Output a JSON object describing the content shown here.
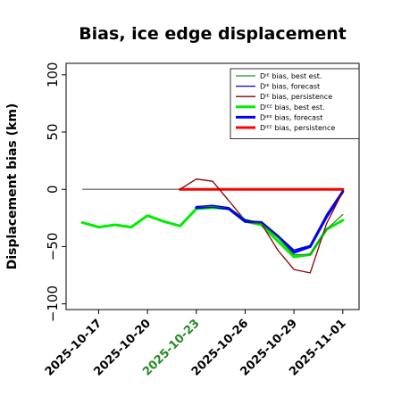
{
  "chart_data": {
    "type": "line",
    "title": "Bias, ice edge displacement",
    "xlabel": "",
    "ylabel": "Displacement bias (km)",
    "ylim": [
      -105,
      110
    ],
    "xlim": [
      "2025-10-15",
      "2025-11-02"
    ],
    "y_ticks": [
      -100,
      -50,
      0,
      50,
      100
    ],
    "y_tick_labels": [
      "−100",
      "−50",
      "0",
      "50",
      "100"
    ],
    "x_ticks": [
      "2025-10-17",
      "2025-10-20",
      "2025-10-23",
      "2025-10-26",
      "2025-10-29",
      "2025-11-01"
    ],
    "x_tick_labels": [
      "2025-10-17",
      "2025-10-20",
      "2025-10-23",
      "2025-10-26",
      "2025-10-29",
      "2025-11-01"
    ],
    "x_tick_colors": [
      "#000000",
      "#000000",
      "#228b22",
      "#000000",
      "#000000",
      "#000000"
    ],
    "grid": false,
    "legend_position": "top-right",
    "zero_line": {
      "from": "2025-10-16",
      "to": "2025-10-22",
      "y": 0,
      "color": "#555555"
    },
    "series": [
      {
        "name": "Dᴵᴱ bias, best est.",
        "color": "#228b22",
        "width": 1.3,
        "x": [
          "2025-10-23",
          "2025-10-24",
          "2025-10-25",
          "2025-10-26",
          "2025-10-27",
          "2025-10-28",
          "2025-10-29",
          "2025-10-30",
          "2025-10-31",
          "2025-11-01"
        ],
        "y": [
          -15,
          -15,
          -16,
          -26,
          -30,
          -42,
          -57,
          -57,
          -35,
          -22
        ]
      },
      {
        "name": "Dᴵᴱ bias, forecast",
        "color": "#0000cd",
        "width": 1.3,
        "x": [
          "2025-10-23",
          "2025-10-24",
          "2025-10-25",
          "2025-10-26",
          "2025-10-27",
          "2025-10-28",
          "2025-10-29",
          "2025-10-30",
          "2025-10-31",
          "2025-11-01"
        ],
        "y": [
          -15,
          -14,
          -16,
          -27,
          -29,
          -40,
          -53,
          -49,
          -22,
          -1
        ]
      },
      {
        "name": "Dᴵᴱ bias, persistence",
        "color": "#8b0000",
        "width": 1.3,
        "x": [
          "2025-10-22",
          "2025-10-23",
          "2025-10-24",
          "2025-10-25",
          "2025-10-26",
          "2025-10-27",
          "2025-10-28",
          "2025-10-29",
          "2025-10-30",
          "2025-10-31",
          "2025-11-01"
        ],
        "y": [
          0,
          9,
          7,
          -10,
          -27,
          -30,
          -53,
          -70,
          -73,
          -30,
          -2
        ]
      },
      {
        "name": "Dᴵᴱᴱ bias, best est.",
        "color": "#00ee00",
        "width": 3,
        "x": [
          "2025-10-16",
          "2025-10-17",
          "2025-10-18",
          "2025-10-19",
          "2025-10-20",
          "2025-10-21",
          "2025-10-22",
          "2025-10-23",
          "2025-10-24",
          "2025-10-25",
          "2025-10-26",
          "2025-10-27",
          "2025-10-28",
          "2025-10-29",
          "2025-10-30",
          "2025-10-31",
          "2025-11-01"
        ],
        "y": [
          -29,
          -33,
          -31,
          -33,
          -23,
          -28,
          -32,
          -17,
          -16,
          -17,
          -28,
          -31,
          -45,
          -59,
          -57,
          -35,
          -27
        ]
      },
      {
        "name": "Dᴵᴱᴱ bias, forecast",
        "color": "#0000ff",
        "width": 3,
        "x": [
          "2025-10-23",
          "2025-10-24",
          "2025-10-25",
          "2025-10-26",
          "2025-10-27",
          "2025-10-28",
          "2025-10-29",
          "2025-10-30",
          "2025-10-31",
          "2025-11-01"
        ],
        "y": [
          -16,
          -15,
          -17,
          -28,
          -29,
          -41,
          -55,
          -50,
          -24,
          -2
        ]
      },
      {
        "name": "Dᴵᴱᴱ bias, persistence",
        "color": "#ff0000",
        "width": 3,
        "x": [
          "2025-10-22",
          "2025-10-23",
          "2025-10-24",
          "2025-10-25",
          "2025-10-26",
          "2025-10-27",
          "2025-10-28",
          "2025-10-29",
          "2025-10-30",
          "2025-10-31",
          "2025-11-01"
        ],
        "y": [
          0,
          0,
          0,
          0,
          0,
          0,
          0,
          0,
          0,
          0,
          0
        ]
      }
    ]
  }
}
